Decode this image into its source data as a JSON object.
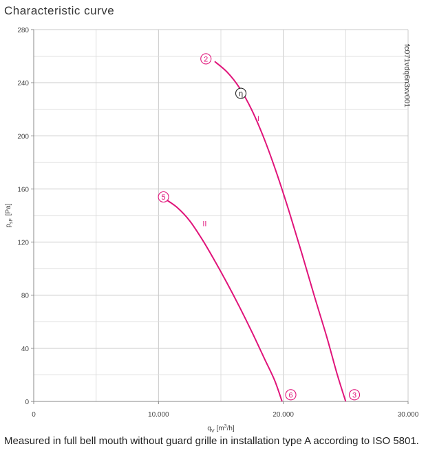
{
  "title": "Characteristic curve",
  "caption": "Measured in full bell mouth without guard grille in installation type A according to ISO 5801.",
  "chart_data": {
    "type": "line",
    "title": "Characteristic curve",
    "xlabel_main": "q",
    "xlabel_sub": "V",
    "xlabel_unit_pre": "[m",
    "xlabel_unit_sup": "3",
    "xlabel_unit_post": "/h]",
    "ylabel_main": "p",
    "ylabel_sub": "sF",
    "ylabel_unit": "[Pa]",
    "xlim": [
      0,
      30000
    ],
    "ylim": [
      0,
      280
    ],
    "x_ticks": [
      {
        "value": 0,
        "label": "0"
      },
      {
        "value": 10000,
        "label": "10.000"
      },
      {
        "value": 20000,
        "label": "20.000"
      },
      {
        "value": 30000,
        "label": "30.000"
      }
    ],
    "y_ticks": [
      {
        "value": 0,
        "label": "0"
      },
      {
        "value": 40,
        "label": "40"
      },
      {
        "value": 80,
        "label": "80"
      },
      {
        "value": 120,
        "label": "120"
      },
      {
        "value": 160,
        "label": "160"
      },
      {
        "value": 200,
        "label": "200"
      },
      {
        "value": 240,
        "label": "240"
      },
      {
        "value": 280,
        "label": "280"
      }
    ],
    "grid": true,
    "watermark": "fc071vdq6n3xv001",
    "curve_color": "#e0147a",
    "series": [
      {
        "name": "I",
        "points": [
          [
            14500,
            256
          ],
          [
            15500,
            248
          ],
          [
            16500,
            236
          ],
          [
            17500,
            219
          ],
          [
            18500,
            197
          ],
          [
            19500,
            171
          ],
          [
            20500,
            142
          ],
          [
            21500,
            111
          ],
          [
            22500,
            79
          ],
          [
            23500,
            48
          ],
          [
            24300,
            21
          ],
          [
            25000,
            0
          ]
        ]
      },
      {
        "name": "II",
        "points": [
          [
            10600,
            152
          ],
          [
            11500,
            146
          ],
          [
            12500,
            136
          ],
          [
            13500,
            122
          ],
          [
            14500,
            106
          ],
          [
            15500,
            89
          ],
          [
            16500,
            71
          ],
          [
            17500,
            52
          ],
          [
            18500,
            32
          ],
          [
            19300,
            16
          ],
          [
            19900,
            0
          ]
        ]
      }
    ],
    "markers": [
      {
        "label": "2",
        "x": 13800,
        "y": 258
      },
      {
        "label": "η",
        "x": 16600,
        "y": 232
      },
      {
        "label": "5",
        "x": 10400,
        "y": 154
      },
      {
        "label": "6",
        "x": 20600,
        "y": 5
      },
      {
        "label": "3",
        "x": 25700,
        "y": 5
      }
    ],
    "series_labels": [
      {
        "label": "I",
        "x": 18000,
        "y": 211
      },
      {
        "label": "II",
        "x": 13700,
        "y": 132
      }
    ]
  }
}
